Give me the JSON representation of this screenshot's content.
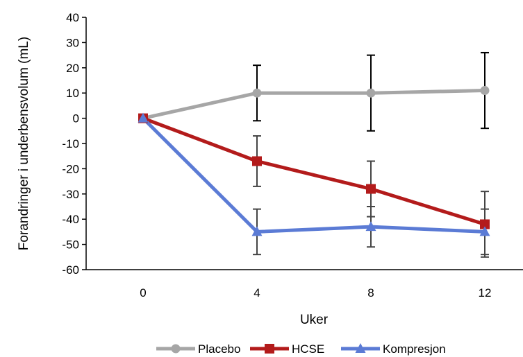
{
  "chart_data": {
    "type": "line",
    "title": "",
    "xlabel": "Uker",
    "ylabel": "Forandringer i underbensvolum (mL)",
    "categories": [
      "0",
      "4",
      "8",
      "12"
    ],
    "ylim": [
      -60,
      40
    ],
    "yticks": [
      40,
      30,
      20,
      10,
      0,
      -10,
      -20,
      -30,
      -40,
      -50,
      -60
    ],
    "grid": false,
    "legend_position": "bottom",
    "series": [
      {
        "name": "Placebo",
        "color": "#a6a6a6",
        "marker": "circle",
        "values": [
          0,
          10,
          10,
          11
        ],
        "error_low": [
          null,
          -1,
          -5,
          -4
        ],
        "error_high": [
          null,
          21,
          25,
          26
        ]
      },
      {
        "name": "HCSE",
        "color": "#b31b1b",
        "marker": "square",
        "values": [
          0,
          -17,
          -28,
          -42
        ],
        "error_low": [
          null,
          -27,
          -39,
          -55
        ],
        "error_high": [
          null,
          -7,
          -17,
          -29
        ]
      },
      {
        "name": "Kompresjon",
        "color": "#5b7bd5",
        "marker": "triangle",
        "values": [
          0,
          -45,
          -43,
          -45
        ],
        "error_low": [
          null,
          -54,
          -51,
          -54
        ],
        "error_high": [
          null,
          -36,
          -35,
          -36
        ]
      }
    ]
  }
}
